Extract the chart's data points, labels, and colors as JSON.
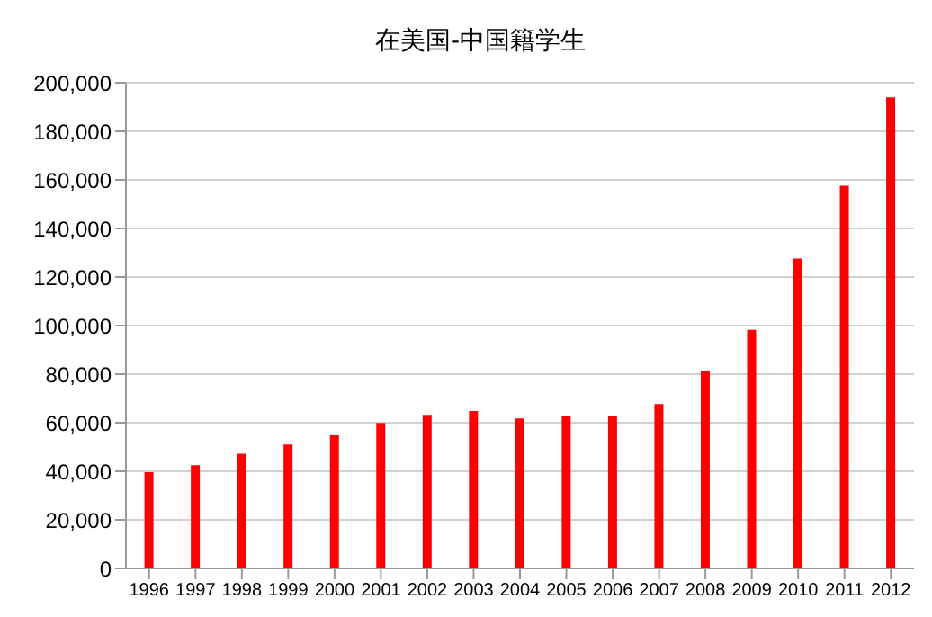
{
  "chart_data": {
    "type": "bar",
    "title": "在美国-中国籍学生",
    "categories": [
      "1996",
      "1997",
      "1998",
      "1999",
      "2000",
      "2001",
      "2002",
      "2003",
      "2004",
      "2005",
      "2006",
      "2007",
      "2008",
      "2009",
      "2010",
      "2011",
      "2012"
    ],
    "values": [
      39600,
      42500,
      47200,
      51000,
      54800,
      59900,
      63200,
      64800,
      61800,
      62600,
      62600,
      67700,
      81100,
      98200,
      127600,
      157600,
      194000
    ],
    "color": "#ff0000",
    "ylim": [
      0,
      200000
    ],
    "yticks": [
      {
        "value": 0,
        "label": "0"
      },
      {
        "value": 20000,
        "label": "20,000"
      },
      {
        "value": 40000,
        "label": "40,000"
      },
      {
        "value": 60000,
        "label": "60,000"
      },
      {
        "value": 80000,
        "label": "80,000"
      },
      {
        "value": 100000,
        "label": "100,000"
      },
      {
        "value": 120000,
        "label": "120,000"
      },
      {
        "value": 140000,
        "label": "140,000"
      },
      {
        "value": 160000,
        "label": "160,000"
      },
      {
        "value": 180000,
        "label": "180,000"
      },
      {
        "value": 200000,
        "label": "200,000"
      }
    ],
    "grid": "y"
  }
}
